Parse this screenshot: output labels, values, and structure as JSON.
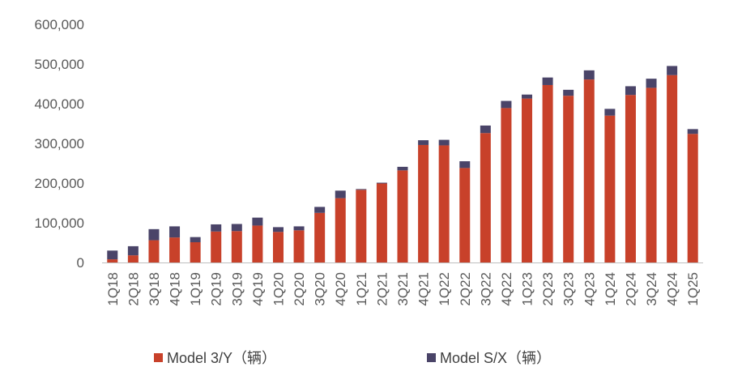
{
  "colors": {
    "model3y": "#C8412A",
    "modelsx": "#4A4468",
    "axis": "#BFBFBF",
    "text": "#595959"
  },
  "chart_data": {
    "type": "bar",
    "stacked": true,
    "title": "",
    "xlabel": "",
    "ylabel": "",
    "ylim": [
      0,
      600000
    ],
    "yticks": [
      "0",
      "100,000",
      "200,000",
      "300,000",
      "400,000",
      "500,000",
      "600,000"
    ],
    "grid": false,
    "legend_position": "bottom",
    "categories": [
      "1Q18",
      "2Q18",
      "3Q18",
      "4Q18",
      "1Q19",
      "2Q19",
      "3Q19",
      "4Q19",
      "1Q20",
      "2Q20",
      "3Q20",
      "4Q20",
      "1Q21",
      "2Q21",
      "3Q21",
      "4Q21",
      "1Q22",
      "2Q22",
      "3Q22",
      "4Q22",
      "1Q23",
      "2Q23",
      "3Q23",
      "4Q23",
      "1Q24",
      "2Q24",
      "3Q24",
      "4Q24",
      "1Q25"
    ],
    "series": [
      {
        "name": "Model 3/Y（辆）",
        "color": "#C8412A",
        "values": [
          8000,
          18000,
          56000,
          63000,
          51000,
          78000,
          79000,
          93000,
          77000,
          81000,
          125000,
          162000,
          183000,
          199000,
          232000,
          296000,
          295000,
          238000,
          326000,
          389000,
          413000,
          447000,
          420000,
          461000,
          370000,
          422000,
          440000,
          472000,
          324000
        ]
      },
      {
        "name": "Model S/X（辆）",
        "color": "#4A4468",
        "values": [
          22000,
          23000,
          28000,
          28000,
          13000,
          18000,
          18000,
          20000,
          12000,
          10000,
          15000,
          19000,
          2000,
          2000,
          9000,
          12000,
          14000,
          17000,
          19000,
          18000,
          10000,
          19000,
          15000,
          23000,
          17000,
          22000,
          23000,
          23000,
          12000
        ]
      }
    ]
  }
}
